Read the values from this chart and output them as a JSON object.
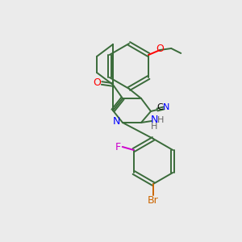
{
  "background_color": "#ebebeb",
  "bond_color": "#3a6b3a",
  "fig_width": 3.0,
  "fig_height": 3.0,
  "dpi": 100,
  "colors": {
    "O": "#ff0000",
    "N": "#0000ff",
    "F": "#cc00cc",
    "Br": "#cc6600",
    "C": "#000000",
    "CN": "#000000"
  }
}
